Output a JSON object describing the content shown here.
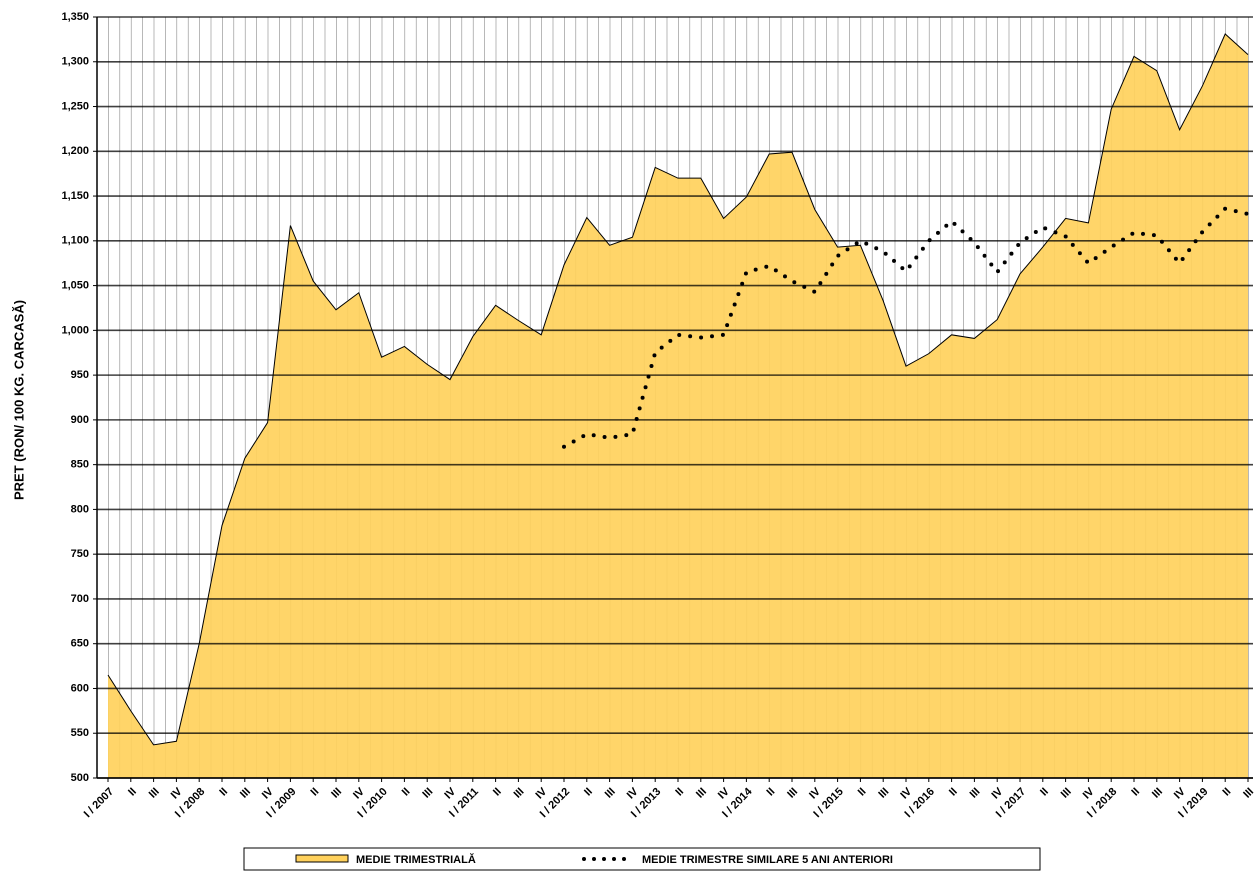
{
  "chart_data": {
    "type": "area",
    "y_label": "PRET (RON/ 100 KG. CARCASĂ)",
    "categories": [
      "I / 2007",
      "II",
      "III",
      "IV",
      "I / 2008",
      "II",
      "III",
      "IV",
      "I / 2009",
      "II",
      "III",
      "IV",
      "I / 2010",
      "II",
      "III",
      "IV",
      "I / 2011",
      "II",
      "III",
      "IV",
      "I / 2012",
      "II",
      "III",
      "IV",
      "I / 2013",
      "II",
      "III",
      "IV",
      "I / 2014",
      "II",
      "III",
      "IV",
      "I / 2015",
      "II",
      "III",
      "IV",
      "I / 2016",
      "II",
      "III",
      "IV",
      "I / 2017",
      "II",
      "III",
      "IV",
      "I / 2018",
      "II",
      "III",
      "IV",
      "I / 2019",
      "II",
      "III"
    ],
    "series": [
      {
        "name": "MEDIE TRIMESTRIALĂ",
        "type": "area",
        "color": "#FFD15C",
        "values": [
          615,
          575,
          537,
          541,
          650,
          782,
          857,
          897,
          1117,
          1055,
          1023,
          1042,
          970,
          982,
          962,
          945,
          993,
          1028,
          1011,
          995,
          1073,
          1126,
          1095,
          1104,
          1182,
          1170,
          1170,
          1125,
          1149,
          1197,
          1199,
          1135,
          1093,
          1095,
          1033,
          960,
          974,
          995,
          991,
          1012,
          1063,
          1093,
          1125,
          1120,
          1247,
          1306,
          1290,
          1224,
          1273,
          1331,
          1308
        ]
      },
      {
        "name": "MEDIE TRIMESTRE SIMILARE 5 ANI ANTERIORI",
        "type": "line",
        "dash": "dotted",
        "color": "#000000",
        "values": [
          null,
          null,
          null,
          null,
          null,
          null,
          null,
          null,
          null,
          null,
          null,
          null,
          null,
          null,
          null,
          null,
          null,
          null,
          null,
          null,
          870,
          884,
          880,
          884,
          975,
          995,
          992,
          995,
          1065,
          1072,
          1055,
          1043,
          1083,
          1100,
          1088,
          1066,
          1100,
          1122,
          1098,
          1065,
          1098,
          1115,
          1105,
          1075,
          1093,
          1109,
          1106,
          1075,
          1110,
          1136,
          1130
        ]
      }
    ],
    "ylim": [
      500,
      1350
    ],
    "yticks": [
      500,
      550,
      600,
      650,
      700,
      750,
      800,
      850,
      900,
      950,
      {
        "value": 1000,
        "label": "1,000"
      },
      {
        "value": 1050,
        "label": "1,050"
      },
      {
        "value": 1100,
        "label": "1,100"
      },
      {
        "value": 1150,
        "label": "1,150"
      },
      {
        "value": 1200,
        "label": "1,200"
      },
      {
        "value": 1250,
        "label": "1,250"
      },
      {
        "value": 1300,
        "label": "1,300"
      },
      {
        "value": 1350,
        "label": "1,350"
      }
    ],
    "grid": true
  }
}
